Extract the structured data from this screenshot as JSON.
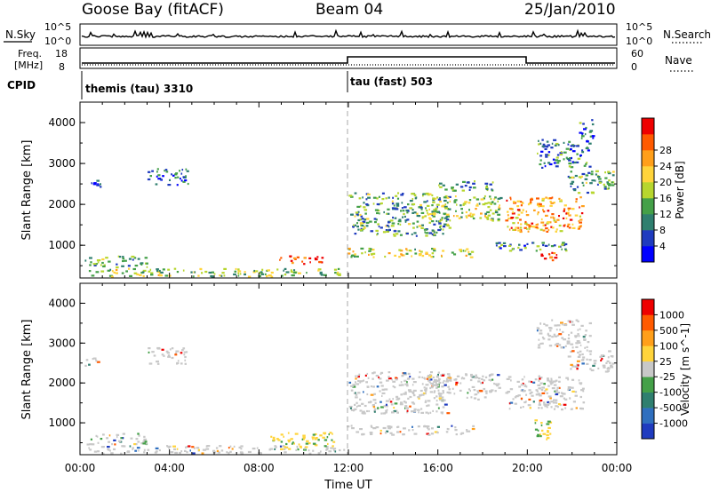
{
  "header": {
    "station": "Goose Bay (fitACF)",
    "beam": "Beam 04",
    "date": "25/Jan/2010"
  },
  "noise_panel": {
    "left_label": "N.Sky",
    "left_ticks": [
      "10^5",
      "10^0"
    ],
    "right_ticks": [
      "10^5",
      "10^0"
    ],
    "right_label": "N.Search"
  },
  "freq_panel": {
    "left_label_line1": "Freq.",
    "left_label_line2": "[MHz]",
    "left_ticks": [
      "18",
      "8"
    ],
    "right_ticks": [
      "60",
      "0"
    ],
    "right_label": "Nave"
  },
  "cpid": {
    "label": "CPID",
    "segments": [
      {
        "start_hour": 0,
        "label": "themis (tau) 3310"
      },
      {
        "start_hour": 12,
        "label": "tau (fast) 503"
      }
    ]
  },
  "chart_data": [
    {
      "type": "heatmap",
      "quantity": "Power",
      "ylabel": "Slant Range [km]",
      "xlabel": "",
      "ylim": [
        200,
        4500
      ],
      "yticks": [
        1000,
        2000,
        3000,
        4000
      ],
      "xlim": [
        0,
        24
      ],
      "colorbar": {
        "label": "Power [dB]",
        "ticks": [
          "4",
          "8",
          "12",
          "16",
          "20",
          "24",
          "28"
        ],
        "colors": [
          "#0000ff",
          "#1f3bbf",
          "#2f7f6f",
          "#44a048",
          "#b7d62e",
          "#ffd43b",
          "#ff9f1a",
          "#ff5a00",
          "#ee0000"
        ]
      },
      "regions": [
        {
          "t0": 0.2,
          "t1": 11.8,
          "r0": 250,
          "r1": 450,
          "level": 0.45
        },
        {
          "t0": 0.2,
          "t1": 3.0,
          "r0": 480,
          "r1": 750,
          "level": 0.35
        },
        {
          "t0": 8.9,
          "t1": 10.9,
          "r0": 560,
          "r1": 760,
          "level": 0.9
        },
        {
          "t0": 11.9,
          "t1": 17.6,
          "r0": 720,
          "r1": 950,
          "level": 0.55
        },
        {
          "t0": 18.3,
          "t1": 21.8,
          "r0": 880,
          "r1": 1100,
          "level": 0.3
        },
        {
          "t0": 20.4,
          "t1": 21.5,
          "r0": 650,
          "r1": 850,
          "level": 0.95
        },
        {
          "t0": 12.0,
          "t1": 16.5,
          "r0": 1250,
          "r1": 2300,
          "level": 0.35
        },
        {
          "t0": 15.5,
          "t1": 18.8,
          "r0": 1600,
          "r1": 2250,
          "level": 0.45
        },
        {
          "t0": 16.0,
          "t1": 18.5,
          "r0": 2350,
          "r1": 2600,
          "level": 0.3
        },
        {
          "t0": 19.0,
          "t1": 22.5,
          "r0": 1350,
          "r1": 2200,
          "level": 0.75
        },
        {
          "t0": 21.8,
          "t1": 23.8,
          "r0": 2300,
          "r1": 2850,
          "level": 0.35
        },
        {
          "t0": 20.4,
          "t1": 22.8,
          "r0": 2900,
          "r1": 3600,
          "level": 0.25
        },
        {
          "t0": 22.3,
          "t1": 23.0,
          "r0": 3600,
          "r1": 4100,
          "level": 0.2
        },
        {
          "t0": 3.0,
          "t1": 4.8,
          "r0": 2500,
          "r1": 2900,
          "level": 0.2
        },
        {
          "t0": 0.4,
          "t1": 0.9,
          "r0": 2450,
          "r1": 2600,
          "level": 0.2
        }
      ]
    },
    {
      "type": "heatmap",
      "quantity": "Velocity",
      "ylabel": "Slant Range [km]",
      "xlabel": "Time UT",
      "ylim": [
        200,
        4500
      ],
      "yticks": [
        1000,
        2000,
        3000,
        4000
      ],
      "xlim": [
        0,
        24
      ],
      "xticks": [
        "00:00",
        "04:00",
        "08:00",
        "12:00",
        "16:00",
        "20:00",
        "00:00"
      ],
      "colorbar": {
        "label": "Velocity [m s^-1]",
        "ticks": [
          "1000",
          "500",
          "100",
          "25",
          "-25",
          "-100",
          "-500",
          "-1000"
        ],
        "colors": [
          "#1f3bbf",
          "#2f6fbf",
          "#2f7f6f",
          "#44a048",
          "#c8c8c8",
          "#ffd43b",
          "#ff9f1a",
          "#ff5a00",
          "#ee0000"
        ]
      },
      "regions": [
        {
          "t0": 0.2,
          "t1": 11.8,
          "r0": 250,
          "r1": 450,
          "level": 0.55
        },
        {
          "t0": 0.2,
          "t1": 3.0,
          "r0": 480,
          "r1": 750,
          "level": 0.4
        },
        {
          "t0": 8.5,
          "t1": 11.3,
          "r0": 400,
          "r1": 780,
          "level": 0.65
        },
        {
          "t0": 11.9,
          "t1": 17.6,
          "r0": 720,
          "r1": 950,
          "level": 0.45
        },
        {
          "t0": 12.0,
          "t1": 16.5,
          "r0": 1250,
          "r1": 2300,
          "level": 0.45
        },
        {
          "t0": 15.5,
          "t1": 18.8,
          "r0": 1600,
          "r1": 2250,
          "level": 0.45
        },
        {
          "t0": 19.0,
          "t1": 22.5,
          "r0": 1350,
          "r1": 2200,
          "level": 0.45
        },
        {
          "t0": 21.8,
          "t1": 23.8,
          "r0": 2300,
          "r1": 2850,
          "level": 0.45
        },
        {
          "t0": 20.4,
          "t1": 22.8,
          "r0": 2900,
          "r1": 3600,
          "level": 0.45
        },
        {
          "t0": 20.3,
          "t1": 21.0,
          "r0": 500,
          "r1": 1100,
          "level": 0.7
        },
        {
          "t0": 3.0,
          "t1": 4.8,
          "r0": 2500,
          "r1": 2900,
          "level": 0.45
        },
        {
          "t0": 0.2,
          "t1": 0.9,
          "r0": 2450,
          "r1": 2650,
          "level": 0.45
        }
      ]
    }
  ]
}
